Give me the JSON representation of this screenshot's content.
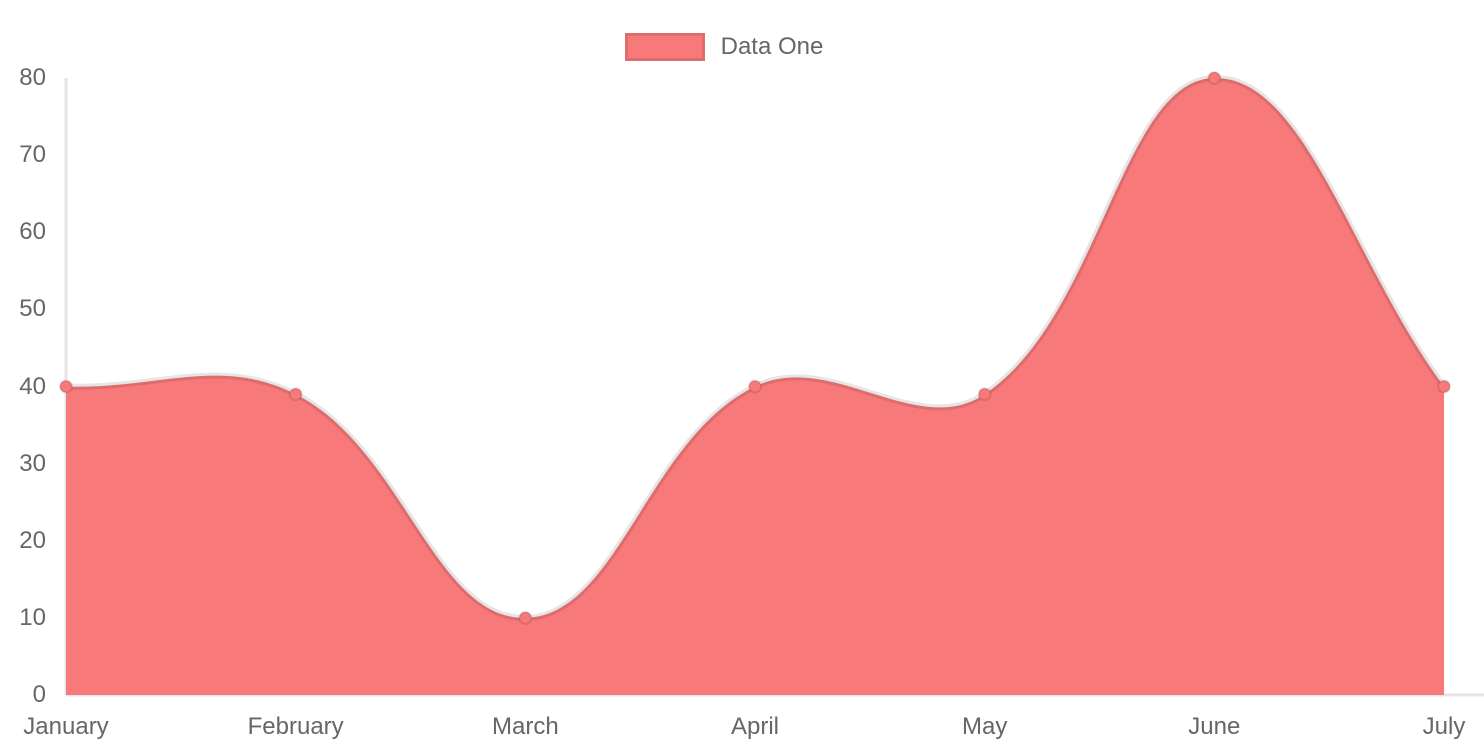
{
  "legend": {
    "position": "top",
    "items": [
      {
        "label": "Data One",
        "swatch_color": "#f87979"
      }
    ]
  },
  "chart_data": {
    "type": "area",
    "title": "",
    "xlabel": "",
    "ylabel": "",
    "categories": [
      "January",
      "February",
      "March",
      "April",
      "May",
      "June",
      "July"
    ],
    "series": [
      {
        "name": "Data One",
        "values": [
          40,
          39,
          10,
          40,
          39,
          80,
          40
        ]
      }
    ],
    "ylim": [
      0,
      80
    ],
    "y_ticks": [
      0,
      10,
      20,
      30,
      40,
      50,
      60,
      70,
      80
    ],
    "grid": false,
    "smooth": true,
    "line_tension": 0.4,
    "legend_position": "top",
    "colors": {
      "fill": "#f87979",
      "point": "#f87979",
      "line": "rgba(0,0,0,0.1)",
      "axis": "rgba(0,0,0,0.1)",
      "text": "#666666",
      "background": "#ffffff"
    }
  }
}
